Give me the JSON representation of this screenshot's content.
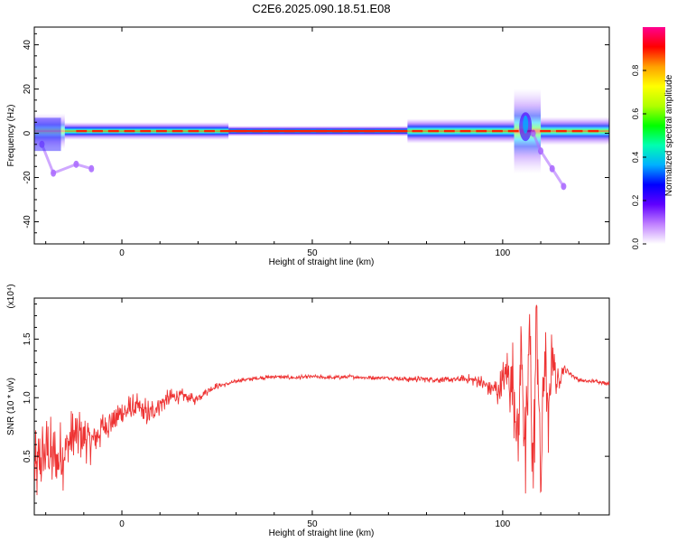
{
  "title": "C2E6.2025.090.18.51.E08",
  "chart_data": [
    {
      "type": "heatmap",
      "xlabel": "Height of straight line (km)",
      "ylabel": "Frequency (Hz)",
      "xlim": [
        -23,
        128
      ],
      "ylim": [
        -50,
        48
      ],
      "x_ticks": [
        0,
        50,
        100
      ],
      "y_ticks": [
        -40,
        -20,
        0,
        20,
        40
      ],
      "colorbar": {
        "label": "Normalized spectral amplitude",
        "range": [
          0,
          1
        ],
        "ticks": [
          "0.0",
          "0.2",
          "0.4",
          "0.6",
          "0.8"
        ],
        "colors": [
          "#ffffff",
          "#c080ff",
          "#6000ff",
          "#0000ff",
          "#00b0ff",
          "#00ffb0",
          "#00ff00",
          "#b0ff00",
          "#ffff00",
          "#ffa000",
          "#ff0000",
          "#ff0090"
        ]
      },
      "band": {
        "center_hz": 1,
        "segments": [
          {
            "x0": -23,
            "x1": -15,
            "halfwidth_hz": 5,
            "intensity": 0.45
          },
          {
            "x0": -15,
            "x1": 28,
            "halfwidth_hz": 2.5,
            "intensity": 0.85
          },
          {
            "x0": 28,
            "x1": 75,
            "halfwidth_hz": 1.5,
            "intensity": 0.95
          },
          {
            "x0": 75,
            "x1": 103,
            "halfwidth_hz": 3.5,
            "intensity": 0.8
          },
          {
            "x0": 103,
            "x1": 110,
            "halfwidth_hz": 12,
            "intensity": 0.5
          },
          {
            "x0": 110,
            "x1": 128,
            "halfwidth_hz": 4,
            "intensity": 0.75
          }
        ],
        "features": [
          {
            "label": "dispersive tail",
            "points": [
              [
                108,
                0
              ],
              [
                110,
                -8
              ],
              [
                113,
                -16
              ],
              [
                116,
                -24
              ]
            ]
          },
          {
            "label": "early scatter",
            "points": [
              [
                -21,
                -5
              ],
              [
                -18,
                -18
              ],
              [
                -12,
                -14
              ],
              [
                -8,
                -16
              ]
            ]
          }
        ]
      }
    },
    {
      "type": "line",
      "xlabel": "Height of straight line (km)",
      "ylabel": "SNR (10 * v/v)",
      "y_multiplier": "(x10⁴)",
      "xlim": [
        -23,
        128
      ],
      "ylim": [
        0,
        1.85
      ],
      "x_ticks": [
        0,
        50,
        100
      ],
      "y_ticks": [
        0.5,
        1.0,
        1.5
      ],
      "y_tick_labels": [
        "0.5",
        "1.0",
        "1.5"
      ],
      "color": "#ee3333",
      "series": [
        {
          "x": [
            -23,
            -20,
            -17,
            -14,
            -11,
            -8,
            -5,
            -2,
            1,
            4,
            7,
            10,
            13,
            16,
            19,
            22,
            25,
            28,
            31,
            34,
            37,
            40,
            45,
            50,
            55,
            60,
            65,
            70,
            75,
            80,
            85,
            90,
            93,
            96,
            99,
            101,
            103,
            104,
            105,
            106,
            107,
            108,
            109,
            110,
            111,
            112,
            113,
            114,
            116,
            118,
            120,
            122,
            125,
            128
          ],
          "y": [
            0.35,
            0.55,
            0.45,
            0.6,
            0.7,
            0.62,
            0.75,
            0.82,
            0.88,
            0.92,
            0.85,
            0.95,
            1.0,
            1.02,
            0.98,
            1.05,
            1.1,
            1.12,
            1.15,
            1.16,
            1.17,
            1.18,
            1.17,
            1.18,
            1.17,
            1.18,
            1.17,
            1.17,
            1.16,
            1.16,
            1.15,
            1.16,
            1.15,
            1.1,
            1.05,
            1.2,
            1.1,
            0.6,
            1.5,
            0.3,
            1.6,
            0.4,
            1.75,
            0.2,
            1.45,
            0.7,
            1.5,
            1.1,
            1.25,
            1.2,
            1.15,
            1.14,
            1.14,
            1.12
          ],
          "noise": [
            0.35,
            0.35,
            0.35,
            0.3,
            0.25,
            0.2,
            0.18,
            0.15,
            0.15,
            0.12,
            0.15,
            0.1,
            0.08,
            0.06,
            0.05,
            0.04,
            0.03,
            0.02,
            0.02,
            0.02,
            0.02,
            0.02,
            0.02,
            0.02,
            0.02,
            0.02,
            0.02,
            0.02,
            0.03,
            0.03,
            0.03,
            0.04,
            0.06,
            0.08,
            0.15,
            0.25,
            0.45,
            0.5,
            0.5,
            0.55,
            0.55,
            0.55,
            0.55,
            0.5,
            0.45,
            0.4,
            0.35,
            0.15,
            0.05,
            0.03,
            0.02,
            0.02,
            0.02,
            0.02
          ]
        }
      ]
    }
  ]
}
